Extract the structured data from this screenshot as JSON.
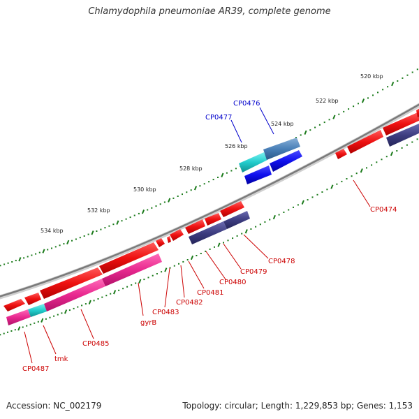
{
  "title": "Chlamydophila pneumoniae AR39, complete genome",
  "footer": {
    "accession": "Accession: NC_002179",
    "summary": "Topology: circular; Length: 1,229,853 bp; Genes: 1,153"
  },
  "colors": {
    "backbone": "#8a8a8a",
    "tick": "#1a7a1a",
    "forward_gene": "#ee1111",
    "reverse_gene": "#e8288f",
    "dark_gene": "#3d3d80",
    "blue_label": "#0000cc",
    "red_label": "#cc0000"
  },
  "scale_labels": [
    "520 kbp",
    "522 kbp",
    "524 kbp",
    "526 kbp",
    "528 kbp",
    "530 kbp",
    "532 kbp",
    "534 kbp"
  ],
  "gene_labels": [
    {
      "text": "CP0476",
      "color": "blue"
    },
    {
      "text": "CP0477",
      "color": "blue"
    },
    {
      "text": "CP0474",
      "color": "red"
    },
    {
      "text": "CP0478",
      "color": "red"
    },
    {
      "text": "CP0479",
      "color": "red"
    },
    {
      "text": "CP0480",
      "color": "red"
    },
    {
      "text": "CP0481",
      "color": "red"
    },
    {
      "text": "CP0482",
      "color": "red"
    },
    {
      "text": "CP0483",
      "color": "red"
    },
    {
      "text": "gyrB",
      "color": "red"
    },
    {
      "text": "CP0485",
      "color": "red"
    },
    {
      "text": "tmk",
      "color": "red"
    },
    {
      "text": "CP0487",
      "color": "red"
    }
  ]
}
